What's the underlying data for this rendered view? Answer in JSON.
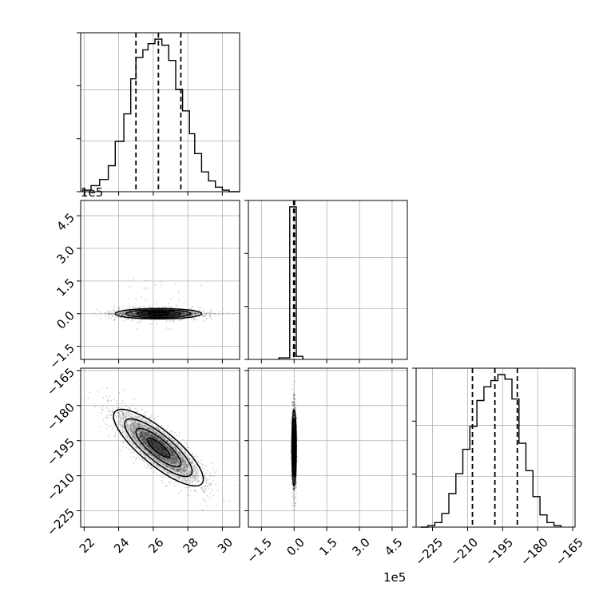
{
  "chart_data": {
    "type": "corner",
    "parameters": [
      {
        "ticks": [
          22,
          24,
          26,
          28,
          30
        ],
        "tick_labels": [
          "22",
          "24",
          "26",
          "28",
          "30"
        ],
        "range": [
          21.8,
          31.0
        ]
      },
      {
        "ticks": [
          -1.5,
          0.0,
          1.5,
          3.0,
          4.5
        ],
        "tick_labels": [
          "−1.5",
          "0.0",
          "1.5",
          "3.0",
          "4.5"
        ],
        "range": [
          -2.1,
          5.2
        ],
        "offset_label": "1e5"
      },
      {
        "ticks": [
          -225,
          -210,
          -195,
          -180,
          -165
        ],
        "tick_labels": [
          "−225",
          "−210",
          "−195",
          "−180",
          "−165"
        ],
        "range": [
          -232,
          -164
        ]
      }
    ],
    "grid": true,
    "marginals": [
      {
        "param": 0,
        "bin_edges": [
          21.9,
          22.4,
          22.9,
          23.4,
          23.8,
          24.3,
          24.7,
          25.0,
          25.4,
          25.7,
          26.1,
          26.5,
          26.9,
          27.3,
          27.7,
          28.1,
          28.4,
          28.8,
          29.2,
          29.6,
          30.0,
          30.4,
          31.0
        ],
        "heights": [
          0.01,
          0.04,
          0.08,
          0.17,
          0.33,
          0.51,
          0.74,
          0.88,
          0.93,
          0.97,
          1.0,
          0.96,
          0.86,
          0.67,
          0.53,
          0.38,
          0.25,
          0.13,
          0.07,
          0.03,
          0.01,
          0.0
        ],
        "quantiles": [
          25.0,
          26.3,
          27.6
        ]
      },
      {
        "param": 1,
        "bin_edges": [
          -0.7,
          -0.2,
          0.1,
          0.4
        ],
        "heights": [
          0.01,
          1.0,
          0.02
        ],
        "quantiles": [
          -0.02,
          0.0,
          0.02
        ]
      },
      {
        "param": 2,
        "bin_edges": [
          -230,
          -227,
          -224,
          -221,
          -218,
          -215,
          -212,
          -209,
          -206,
          -203,
          -200,
          -197,
          -194,
          -191,
          -188,
          -185,
          -182,
          -179,
          -176,
          -173,
          -170
        ],
        "heights": [
          0.0,
          0.01,
          0.03,
          0.09,
          0.22,
          0.35,
          0.51,
          0.66,
          0.83,
          0.92,
          0.96,
          1.0,
          0.97,
          0.84,
          0.55,
          0.37,
          0.2,
          0.08,
          0.03,
          0.01
        ],
        "quantiles": [
          -207.9,
          -198.3,
          -188.7
        ]
      }
    ],
    "pairs": [
      {
        "x_param": 0,
        "y_param": 1,
        "mean": [
          26.3,
          0.0
        ],
        "std": [
          1.25,
          0.12
        ],
        "rho": 0.0
      },
      {
        "x_param": 0,
        "y_param": 2,
        "mean": [
          26.3,
          -198.0
        ],
        "std": [
          1.3,
          8.2
        ],
        "rho": -0.82
      },
      {
        "x_param": 1,
        "y_param": 2,
        "mean": [
          0.0,
          -198.0
        ],
        "std": [
          0.05,
          8.2
        ],
        "rho": 0.0
      }
    ]
  }
}
